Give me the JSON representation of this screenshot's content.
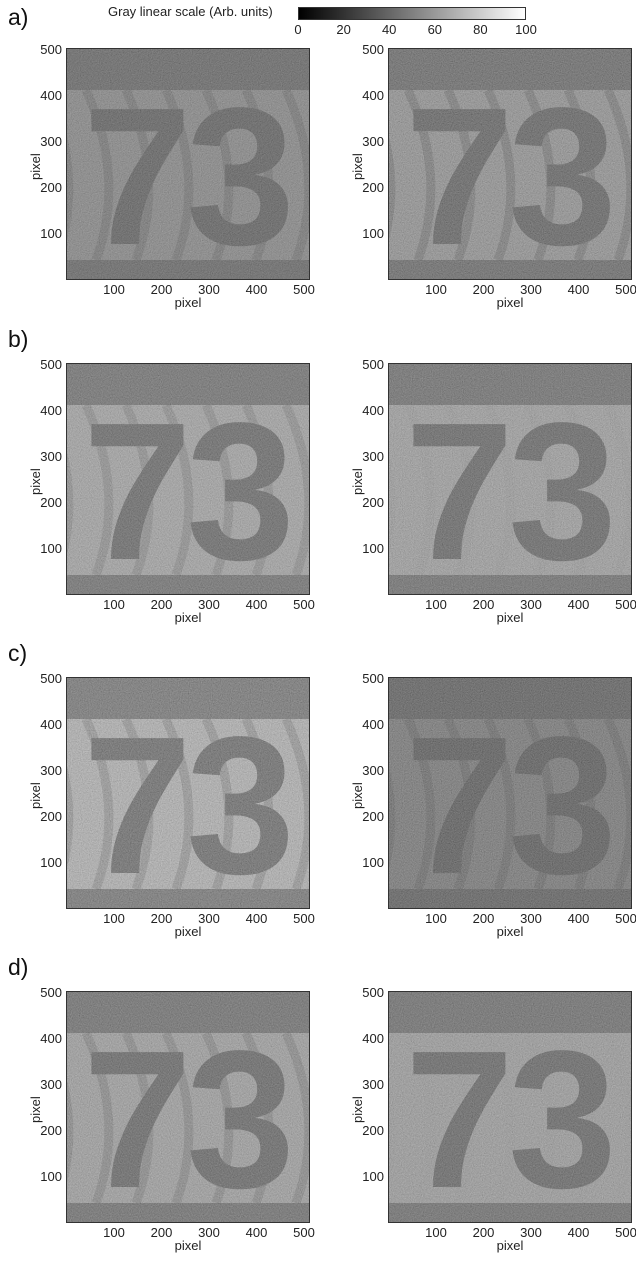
{
  "colorbar": {
    "title": "Gray linear scale (Arb. units)",
    "ticks": [
      "0",
      "20",
      "40",
      "60",
      "80",
      "100"
    ],
    "range": [
      0,
      100
    ]
  },
  "axis": {
    "xlabel": "pixel",
    "ylabel": "pixel",
    "xticks": [
      "100",
      "200",
      "300",
      "400",
      "500"
    ],
    "yticks": [
      "500",
      "400",
      "300",
      "200",
      "100"
    ]
  },
  "panels": [
    {
      "label": "a)",
      "images": [
        {
          "digits": "73",
          "brightness": 0.36,
          "fringes": 0.9
        },
        {
          "digits": "73",
          "brightness": 0.44,
          "fringes": 1.0
        }
      ]
    },
    {
      "label": "b)",
      "images": [
        {
          "digits": "73",
          "brightness": 0.55,
          "fringes": 0.7
        },
        {
          "digits": "73",
          "brightness": 0.52,
          "fringes": 0.1
        }
      ]
    },
    {
      "label": "c)",
      "images": [
        {
          "digits": "73",
          "brightness": 0.64,
          "fringes": 0.8
        },
        {
          "digits": "73",
          "brightness": 0.27,
          "fringes": 0.9
        }
      ]
    },
    {
      "label": "d)",
      "images": [
        {
          "digits": "73",
          "brightness": 0.52,
          "fringes": 0.8
        },
        {
          "digits": "73",
          "brightness": 0.5,
          "fringes": 0.05
        }
      ]
    }
  ]
}
